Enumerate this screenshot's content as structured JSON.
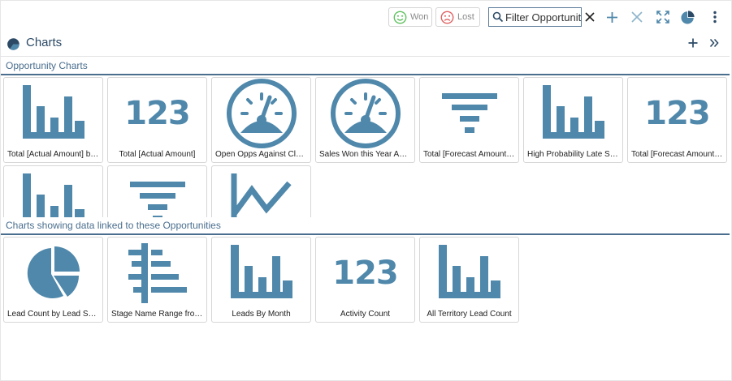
{
  "toolbar": {
    "won_label": "Won",
    "lost_label": "Lost",
    "filter_placeholder": "Filter Opportunities",
    "icons": [
      "clear-icon",
      "add-icon",
      "close-icon",
      "expand-icon",
      "pie-chart-icon",
      "more-vertical-icon"
    ]
  },
  "header": {
    "title": "Charts"
  },
  "sections": {
    "opportunity": {
      "title": "Opportunity Charts",
      "tiles": [
        {
          "label": "Total [Actual Amount] by Month",
          "icon": "bar-chart-icon"
        },
        {
          "label": "Total [Actual Amount]",
          "icon": "number-icon"
        },
        {
          "label": "Open Opps Against Close Date",
          "icon": "gauge-icon"
        },
        {
          "label": "Sales Won this Year Against Target",
          "icon": "gauge-icon"
        },
        {
          "label": "Total [Forecast Amount] by Stage",
          "icon": "funnel-icon"
        },
        {
          "label": "High Probability Late Stage Opportunities",
          "icon": "bar-chart-icon"
        },
        {
          "label": "Total [Forecast Amount] Open",
          "icon": "number-icon"
        },
        {
          "label": "",
          "icon": "bar-chart-icon"
        },
        {
          "label": "",
          "icon": "funnel-icon"
        },
        {
          "label": "",
          "icon": "line-chart-icon"
        }
      ]
    },
    "linked": {
      "title": "Charts showing data linked to these Opportunities",
      "tiles": [
        {
          "label": "Lead Count by Lead Source",
          "icon": "pie-chart-icon"
        },
        {
          "label": "Stage Name Range from Lead",
          "icon": "range-icon"
        },
        {
          "label": "Leads By Month",
          "icon": "bar-chart-icon"
        },
        {
          "label": "Activity Count",
          "icon": "number-icon"
        },
        {
          "label": "All Territory Lead Count",
          "icon": "bar-chart-icon"
        }
      ]
    }
  },
  "number_glyph": "123",
  "colors": {
    "accent": "#4f88ab",
    "header": "#2c4a66",
    "won": "#5cc15c",
    "lost": "#e06060",
    "rule": "#4a6e8e"
  }
}
